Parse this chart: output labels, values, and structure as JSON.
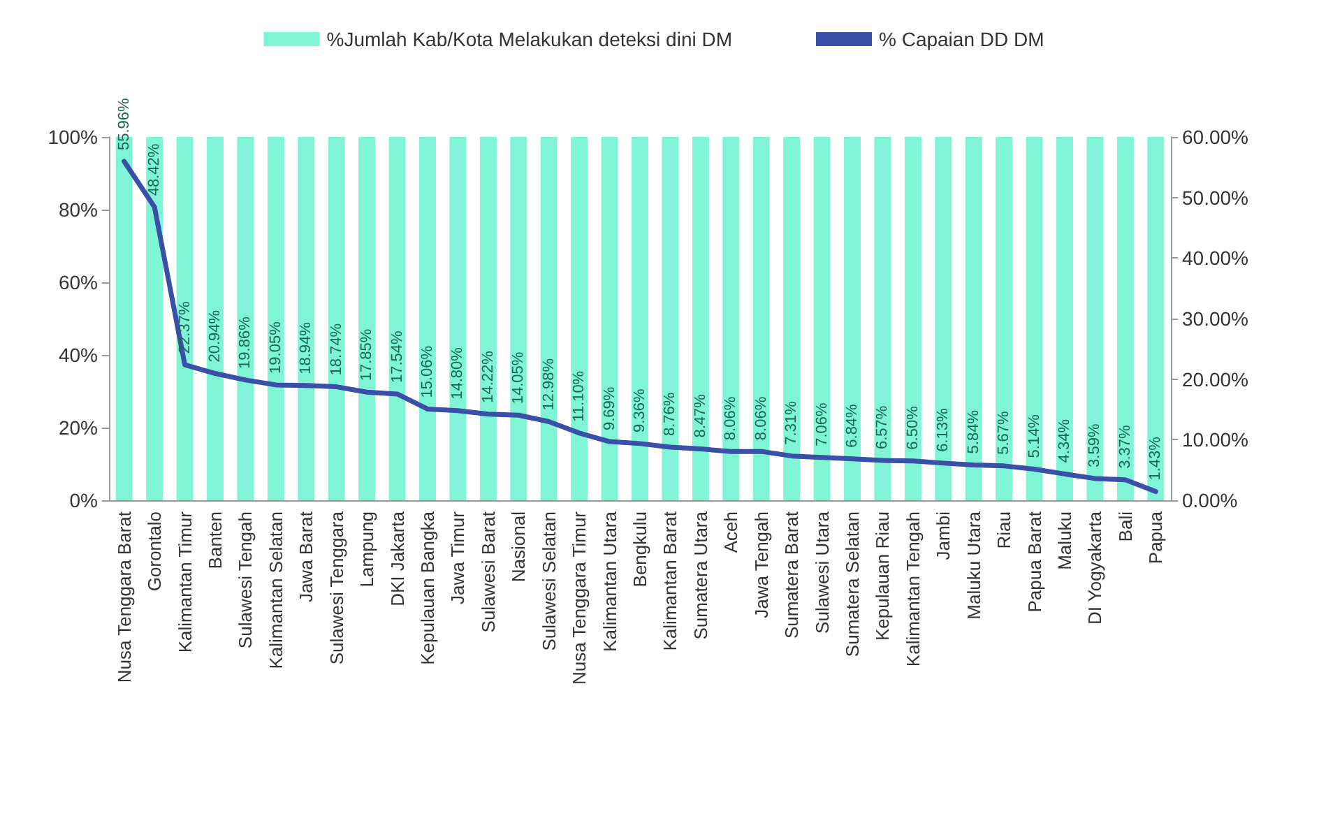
{
  "chart_data": {
    "type": "bar",
    "categories": [
      "Nusa Tenggara Barat",
      "Gorontalo",
      "Kalimantan Timur",
      "Banten",
      "Sulawesi Tengah",
      "Kalimantan Selatan",
      "Jawa Barat",
      "Sulawesi Tenggara",
      "Lampung",
      "DKI Jakarta",
      "Kepulauan Bangka",
      "Jawa Timur",
      "Sulawesi Barat",
      "Nasional",
      "Sulawesi Selatan",
      "Nusa Tenggara Timur",
      "Kalimantan Utara",
      "Bengkulu",
      "Kalimantan Barat",
      "Sumatera Utara",
      "Aceh",
      "Jawa Tengah",
      "Sumatera Barat",
      "Sulawesi Utara",
      "Sumatera Selatan",
      "Kepulauan Riau",
      "Kalimantan Tengah",
      "Jambi",
      "Maluku Utara",
      "Riau",
      "Papua Barat",
      "Maluku",
      "DI Yogyakarta",
      "Bali",
      "Papua"
    ],
    "series": [
      {
        "name": "%Jumlah Kab/Kota Melakukan deteksi dini DM",
        "color": "#7ff5d6",
        "values": [
          100,
          100,
          100,
          100,
          100,
          100,
          100,
          100,
          100,
          100,
          100,
          100,
          100,
          100,
          100,
          100,
          100,
          100,
          100,
          100,
          100,
          100,
          100,
          100,
          100,
          100,
          100,
          100,
          100,
          100,
          100,
          100,
          100,
          100,
          100
        ]
      },
      {
        "name": "% Capaian DD DM",
        "type": "line",
        "axis": "y2",
        "color": "#3a4fa8",
        "values": [
          55.96,
          48.42,
          22.37,
          20.94,
          19.86,
          19.05,
          18.94,
          18.74,
          17.85,
          17.54,
          15.06,
          14.8,
          14.22,
          14.05,
          12.98,
          11.1,
          9.69,
          9.36,
          8.76,
          8.47,
          8.06,
          8.06,
          7.31,
          7.06,
          6.84,
          6.57,
          6.5,
          6.13,
          5.84,
          5.67,
          5.14,
          4.34,
          3.59,
          3.37,
          1.43
        ],
        "value_labels": [
          "55.96%",
          "48.42%",
          "22.37%",
          "20.94%",
          "19.86%",
          "19.05%",
          "18.94%",
          "18.74%",
          "17.85%",
          "17.54%",
          "15.06%",
          "14.80%",
          "14.22%",
          "14.05%",
          "12.98%",
          "11.10%",
          "9.69%",
          "9.36%",
          "8.76%",
          "8.47%",
          "8.06%",
          "8.06%",
          "7.31%",
          "7.06%",
          "6.84%",
          "6.57%",
          "6.50%",
          "6.13%",
          "5.84%",
          "5.67%",
          "5.14%",
          "4.34%",
          "3.59%",
          "3.37%",
          "1.43%"
        ]
      }
    ],
    "ylim": [
      0,
      100
    ],
    "yticks": [
      {
        "value": 0,
        "label": "0%"
      },
      {
        "value": 20,
        "label": "20%"
      },
      {
        "value": 40,
        "label": "40%"
      },
      {
        "value": 60,
        "label": "60%"
      },
      {
        "value": 80,
        "label": "80%"
      },
      {
        "value": 100,
        "label": "100%"
      }
    ],
    "y2lim": [
      0,
      60
    ],
    "y2ticks": [
      {
        "value": 0,
        "label": "0.00%"
      },
      {
        "value": 10,
        "label": "10.00%"
      },
      {
        "value": 20,
        "label": "20.00%"
      },
      {
        "value": 30,
        "label": "30.00%"
      },
      {
        "value": 40,
        "label": "40.00%"
      },
      {
        "value": 50,
        "label": "50.00%"
      },
      {
        "value": 60,
        "label": "60.00%"
      }
    ],
    "legend": "top",
    "grid": false,
    "marker": "none",
    "line_style": "solid"
  }
}
